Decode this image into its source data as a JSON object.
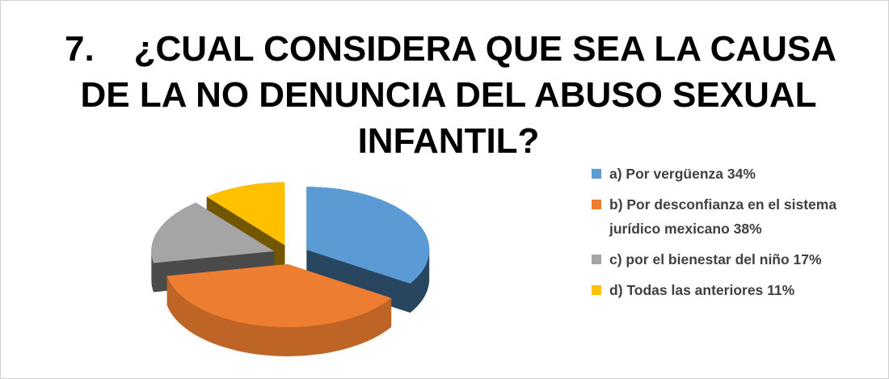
{
  "chart_data": {
    "type": "pie",
    "title": [
      "7.    ¿CUAL CONSIDERA QUE SEA LA CAUSA",
      "DE LA NO DENUNCIA DEL ABUSO SEXUAL",
      "INFANTIL?"
    ],
    "categories": [
      "a) Por vergüenza 34%",
      "b) Por desconfianza en el sistema jurídico mexicano 38%",
      "c) por el bienestar del niño 17%",
      "d) Todas las anteriores 11%"
    ],
    "values": [
      34,
      38,
      17,
      11
    ],
    "colors": [
      "#5b9bd5",
      "#ed7d31",
      "#a5a5a5",
      "#ffc000"
    ],
    "legend": "right"
  }
}
